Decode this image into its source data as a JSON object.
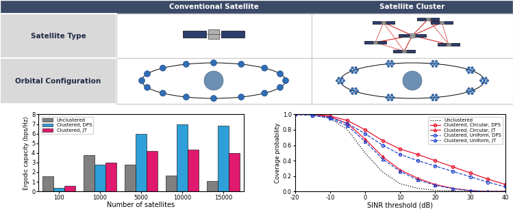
{
  "table": {
    "header": [
      "Conventional Satellite",
      "Satellite Cluster"
    ],
    "rows": [
      "Satellite Type",
      "Orbital Configuration"
    ]
  },
  "chart_data": [
    {
      "type": "bar",
      "categories": [
        "100",
        "1000",
        "5000",
        "10000",
        "15000"
      ],
      "xlabel": "Number of satellites",
      "ylabel": "Ergodic capacity (bps/Hz)",
      "ylim": [
        0,
        8
      ],
      "yticks": [
        0,
        1,
        2,
        3,
        4,
        5,
        6,
        7,
        8
      ],
      "grid": false,
      "legend": "upper left",
      "series": [
        {
          "name": "Unclustered",
          "color": "#808080",
          "values": [
            1.55,
            3.8,
            2.75,
            1.65,
            1.1
          ]
        },
        {
          "name": "Clustered, DPS",
          "color": "#2e9fd8",
          "values": [
            0.4,
            2.8,
            5.95,
            6.95,
            6.85
          ]
        },
        {
          "name": "Clustered, JT",
          "color": "#e0196e",
          "values": [
            0.55,
            3.0,
            4.2,
            4.35,
            4.0
          ]
        }
      ]
    },
    {
      "type": "line",
      "x": [
        -20,
        -15,
        -10,
        -5,
        0,
        5,
        10,
        15,
        20,
        25,
        30,
        35,
        40
      ],
      "xlabel": "SINR threshold (dB)",
      "ylabel": "Coverage probability",
      "xlim": [
        -20,
        40
      ],
      "xticks": [
        -20,
        -10,
        0,
        10,
        20,
        30,
        40
      ],
      "ylim": [
        0,
        1
      ],
      "yticks": [
        {
          "value": 0,
          "label": "0.0"
        },
        0.2,
        0.4,
        0.6,
        0.8,
        {
          "value": 1,
          "label": "1.0"
        }
      ],
      "grid": false,
      "legend": "upper right",
      "series": [
        {
          "name": "Unclustered",
          "color": "#000000",
          "marker": "none",
          "line_style": "dotted",
          "values": [
            1.0,
            0.99,
            0.95,
            0.8,
            0.5,
            0.25,
            0.1,
            0.04,
            0.015,
            0.005,
            0.0,
            0.0,
            0.0
          ]
        },
        {
          "name": "Clustered, Circular, DPS",
          "color": "#e8102a",
          "marker": "circle",
          "line_style": "solid",
          "values": [
            1.0,
            1.0,
            0.98,
            0.92,
            0.8,
            0.66,
            0.55,
            0.48,
            0.4,
            0.32,
            0.24,
            0.16,
            0.09
          ]
        },
        {
          "name": "Clustered, Circular, JT",
          "color": "#e8102a",
          "marker": "triangle",
          "line_style": "solid",
          "values": [
            1.0,
            1.0,
            0.97,
            0.88,
            0.68,
            0.45,
            0.28,
            0.17,
            0.09,
            0.04,
            0.01,
            0.0,
            0.0
          ]
        },
        {
          "name": "Clustered, Uniform, DPS",
          "color": "#2244cc",
          "marker": "circle",
          "line_style": "dashed",
          "values": [
            1.0,
            0.99,
            0.96,
            0.88,
            0.75,
            0.6,
            0.48,
            0.4,
            0.33,
            0.26,
            0.19,
            0.12,
            0.06
          ]
        },
        {
          "name": "Clustered, Uniform, JT",
          "color": "#2244cc",
          "marker": "triangle",
          "line_style": "dashed",
          "values": [
            1.0,
            0.99,
            0.95,
            0.85,
            0.65,
            0.42,
            0.26,
            0.15,
            0.08,
            0.035,
            0.01,
            0.0,
            0.0
          ]
        }
      ]
    }
  ]
}
